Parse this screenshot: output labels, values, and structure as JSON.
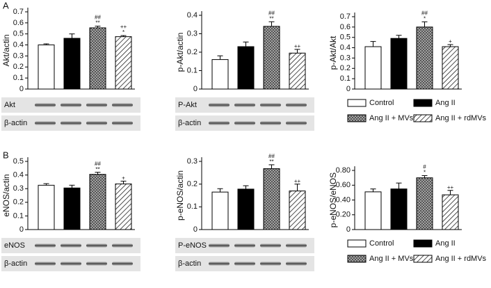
{
  "chart_data": [
    {
      "type": "bar",
      "panel": "A",
      "ylabel": "Akt/actin",
      "values": [
        0.4,
        0.46,
        0.555,
        0.475
      ],
      "errors": [
        0.01,
        0.04,
        0.015,
        0.01
      ],
      "ylim": [
        0,
        0.7
      ],
      "yticks": [
        0,
        0.1,
        0.2,
        0.3,
        0.4,
        0.5,
        0.6,
        0.7
      ],
      "annotations": [
        null,
        null,
        [
          "##",
          "**"
        ],
        [
          "++",
          "*"
        ]
      ],
      "blot_labels": [
        "Akt",
        "β-actin"
      ]
    },
    {
      "type": "bar",
      "ylabel": "p-Akt/actin",
      "values": [
        0.16,
        0.23,
        0.34,
        0.195
      ],
      "errors": [
        0.02,
        0.025,
        0.025,
        0.02
      ],
      "ylim": [
        0,
        0.4
      ],
      "yticks": [
        0,
        0.1,
        0.2,
        0.3,
        0.4
      ],
      "annotations": [
        null,
        null,
        [
          "##",
          "**"
        ],
        [
          "++"
        ]
      ],
      "blot_labels": [
        "P-Akt",
        "β-actin"
      ]
    },
    {
      "type": "bar",
      "ylabel": "p-Akt/Akt",
      "values": [
        0.41,
        0.49,
        0.6,
        0.41
      ],
      "errors": [
        0.05,
        0.03,
        0.05,
        0.02
      ],
      "ylim": [
        0,
        0.7
      ],
      "yticks": [
        0,
        0.1,
        0.2,
        0.3,
        0.4,
        0.5,
        0.6,
        0.7
      ],
      "annotations": [
        null,
        null,
        [
          "##",
          "*"
        ],
        [
          "+"
        ]
      ],
      "categories": [
        "Control",
        "Ang II",
        "Ang II + MVs",
        "Ang II + rdMVs"
      ],
      "legend": true
    },
    {
      "type": "bar",
      "panel": "B",
      "ylabel": "eNOS/actin",
      "values": [
        0.325,
        0.305,
        0.405,
        0.335
      ],
      "errors": [
        0.012,
        0.02,
        0.015,
        0.02
      ],
      "ylim": [
        0,
        0.5
      ],
      "yticks": [
        0,
        0.1,
        0.2,
        0.3,
        0.4,
        0.5
      ],
      "annotations": [
        null,
        null,
        [
          "##",
          "**"
        ],
        [
          "+"
        ]
      ],
      "blot_labels": [
        "eNOS",
        "β-actin"
      ]
    },
    {
      "type": "bar",
      "ylabel": "p-eNOS/actin",
      "values": [
        0.165,
        0.178,
        0.268,
        0.17
      ],
      "errors": [
        0.015,
        0.015,
        0.017,
        0.03
      ],
      "ylim": [
        0,
        0.3
      ],
      "yticks": [
        0,
        0.1,
        0.2,
        0.3
      ],
      "annotations": [
        null,
        null,
        [
          "##",
          "**"
        ],
        [
          "++"
        ]
      ],
      "blot_labels": [
        "P-eNOS",
        "β-actin"
      ]
    },
    {
      "type": "bar",
      "ylabel": "p-eNOS/eNOS",
      "values": [
        0.51,
        0.55,
        0.7,
        0.47
      ],
      "errors": [
        0.04,
        0.08,
        0.03,
        0.06
      ],
      "ylim": [
        0,
        0.8
      ],
      "yticks": [
        0,
        {
          "value": 0.2,
          "label": "0.20"
        },
        {
          "value": 0.4,
          "label": "0.40"
        },
        {
          "value": 0.6,
          "label": "0.60"
        },
        {
          "value": 0.8,
          "label": "0.80"
        }
      ],
      "annotations": [
        null,
        null,
        [
          "#",
          "*"
        ],
        [
          "++"
        ]
      ],
      "categories": [
        "Control",
        "Ang II",
        "Ang II + MVs",
        "Ang II + rdMVs"
      ],
      "legend": true
    }
  ]
}
